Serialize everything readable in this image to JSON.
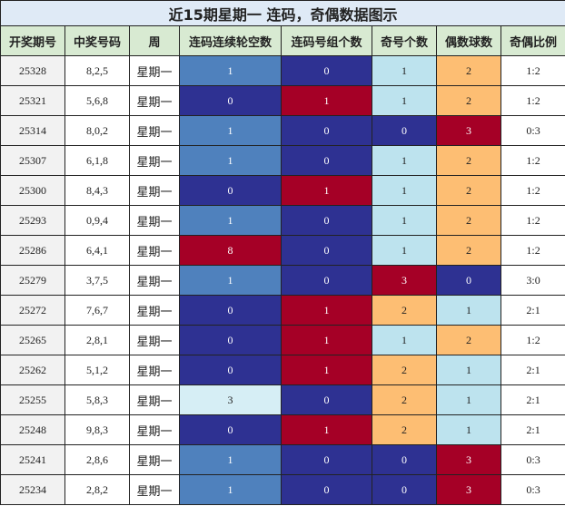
{
  "title": "近15期星期一 连码，奇偶数据图示",
  "table": {
    "headers": [
      "开奖期号",
      "中奖号码",
      "周",
      "连码连续轮空数",
      "连码号组个数",
      "奇号个数",
      "偶数球数",
      "奇偶比例"
    ],
    "rows": [
      [
        "25328",
        "8,2,5",
        "星期一",
        "1",
        "0",
        "1",
        "2",
        "1:2"
      ],
      [
        "25321",
        "5,6,8",
        "星期一",
        "0",
        "1",
        "1",
        "2",
        "1:2"
      ],
      [
        "25314",
        "8,0,2",
        "星期一",
        "1",
        "0",
        "0",
        "3",
        "0:3"
      ],
      [
        "25307",
        "6,1,8",
        "星期一",
        "1",
        "0",
        "1",
        "2",
        "1:2"
      ],
      [
        "25300",
        "8,4,3",
        "星期一",
        "0",
        "1",
        "1",
        "2",
        "1:2"
      ],
      [
        "25293",
        "0,9,4",
        "星期一",
        "1",
        "0",
        "1",
        "2",
        "1:2"
      ],
      [
        "25286",
        "6,4,1",
        "星期一",
        "8",
        "0",
        "1",
        "2",
        "1:2"
      ],
      [
        "25279",
        "3,7,5",
        "星期一",
        "1",
        "0",
        "3",
        "0",
        "3:0"
      ],
      [
        "25272",
        "7,6,7",
        "星期一",
        "0",
        "1",
        "2",
        "1",
        "2:1"
      ],
      [
        "25265",
        "2,8,1",
        "星期一",
        "0",
        "1",
        "1",
        "2",
        "1:2"
      ],
      [
        "25262",
        "5,1,2",
        "星期一",
        "0",
        "1",
        "2",
        "1",
        "2:1"
      ],
      [
        "25255",
        "5,8,3",
        "星期一",
        "3",
        "0",
        "2",
        "1",
        "2:1"
      ],
      [
        "25248",
        "9,8,3",
        "星期一",
        "0",
        "1",
        "2",
        "1",
        "2:1"
      ],
      [
        "25241",
        "2,8,6",
        "星期一",
        "1",
        "0",
        "0",
        "3",
        "0:3"
      ],
      [
        "25234",
        "2,8,2",
        "星期一",
        "1",
        "0",
        "0",
        "3",
        "0:3"
      ]
    ],
    "cell_fills": [
      [
        "#4f81bd",
        "#2e3192",
        "#bde3ee",
        "#fdbe73"
      ],
      [
        "#2e3192",
        "#a50026",
        "#bde3ee",
        "#fdbe73"
      ],
      [
        "#4f81bd",
        "#2e3192",
        "#2e3192",
        "#a50026"
      ],
      [
        "#4f81bd",
        "#2e3192",
        "#bde3ee",
        "#fdbe73"
      ],
      [
        "#2e3192",
        "#a50026",
        "#bde3ee",
        "#fdbe73"
      ],
      [
        "#4f81bd",
        "#2e3192",
        "#bde3ee",
        "#fdbe73"
      ],
      [
        "#a50026",
        "#2e3192",
        "#bde3ee",
        "#fdbe73"
      ],
      [
        "#4f81bd",
        "#2e3192",
        "#a50026",
        "#2e3192"
      ],
      [
        "#2e3192",
        "#a50026",
        "#fdbe73",
        "#bde3ee"
      ],
      [
        "#2e3192",
        "#a50026",
        "#bde3ee",
        "#fdbe73"
      ],
      [
        "#2e3192",
        "#a50026",
        "#fdbe73",
        "#bde3ee"
      ],
      [
        "#d6eef5",
        "#2e3192",
        "#fdbe73",
        "#bde3ee"
      ],
      [
        "#2e3192",
        "#a50026",
        "#fdbe73",
        "#bde3ee"
      ],
      [
        "#4f81bd",
        "#2e3192",
        "#2e3192",
        "#a50026"
      ],
      [
        "#4f81bd",
        "#2e3192",
        "#2e3192",
        "#a50026"
      ]
    ]
  }
}
